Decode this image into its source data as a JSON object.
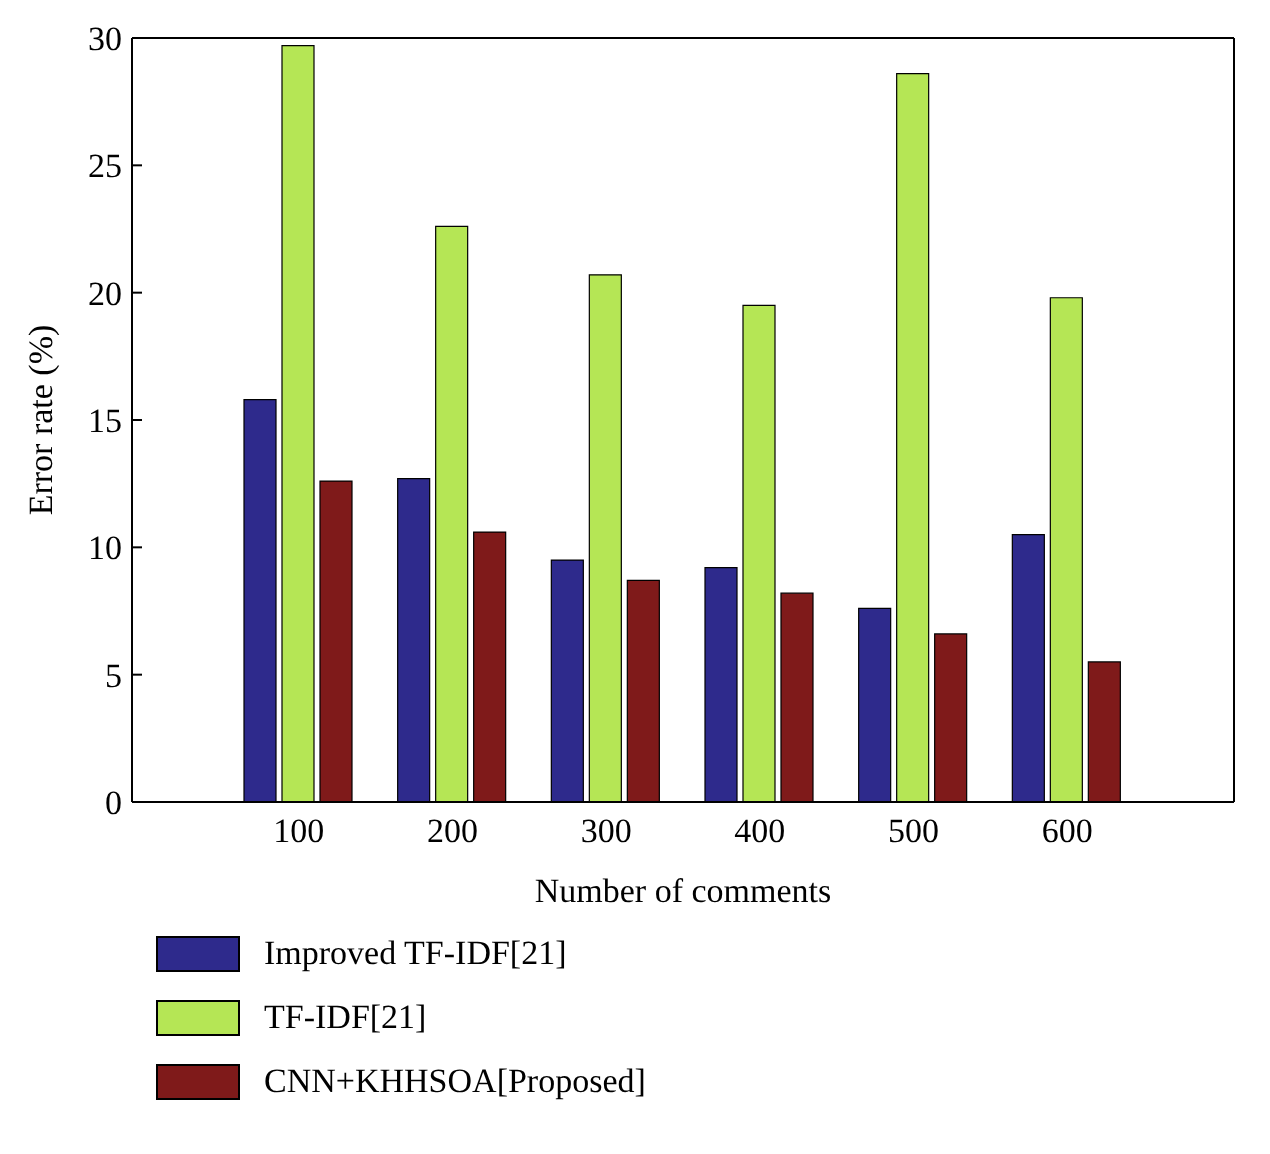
{
  "chart_data": {
    "type": "bar",
    "xlabel": "Number of comments",
    "ylabel": "Error rate (%)",
    "categories": [
      "100",
      "200",
      "300",
      "400",
      "500",
      "600"
    ],
    "series": [
      {
        "name": "Improved TF-IDF[21]",
        "color": "#2e2a8c",
        "values": [
          15.8,
          12.7,
          9.5,
          9.2,
          7.6,
          10.5
        ]
      },
      {
        "name": "TF-IDF[21]",
        "color": "#b5e655",
        "values": [
          29.7,
          22.6,
          20.7,
          19.5,
          28.6,
          19.8
        ]
      },
      {
        "name": "CNN+KHHSOA[Proposed]",
        "color": "#7f1a1a",
        "values": [
          12.6,
          10.6,
          8.7,
          8.2,
          6.6,
          5.5
        ]
      }
    ],
    "ylim": [
      0,
      30
    ],
    "yticks": [
      0,
      5,
      10,
      15,
      20,
      25,
      30
    ],
    "grid": false,
    "legend": "bottom"
  }
}
